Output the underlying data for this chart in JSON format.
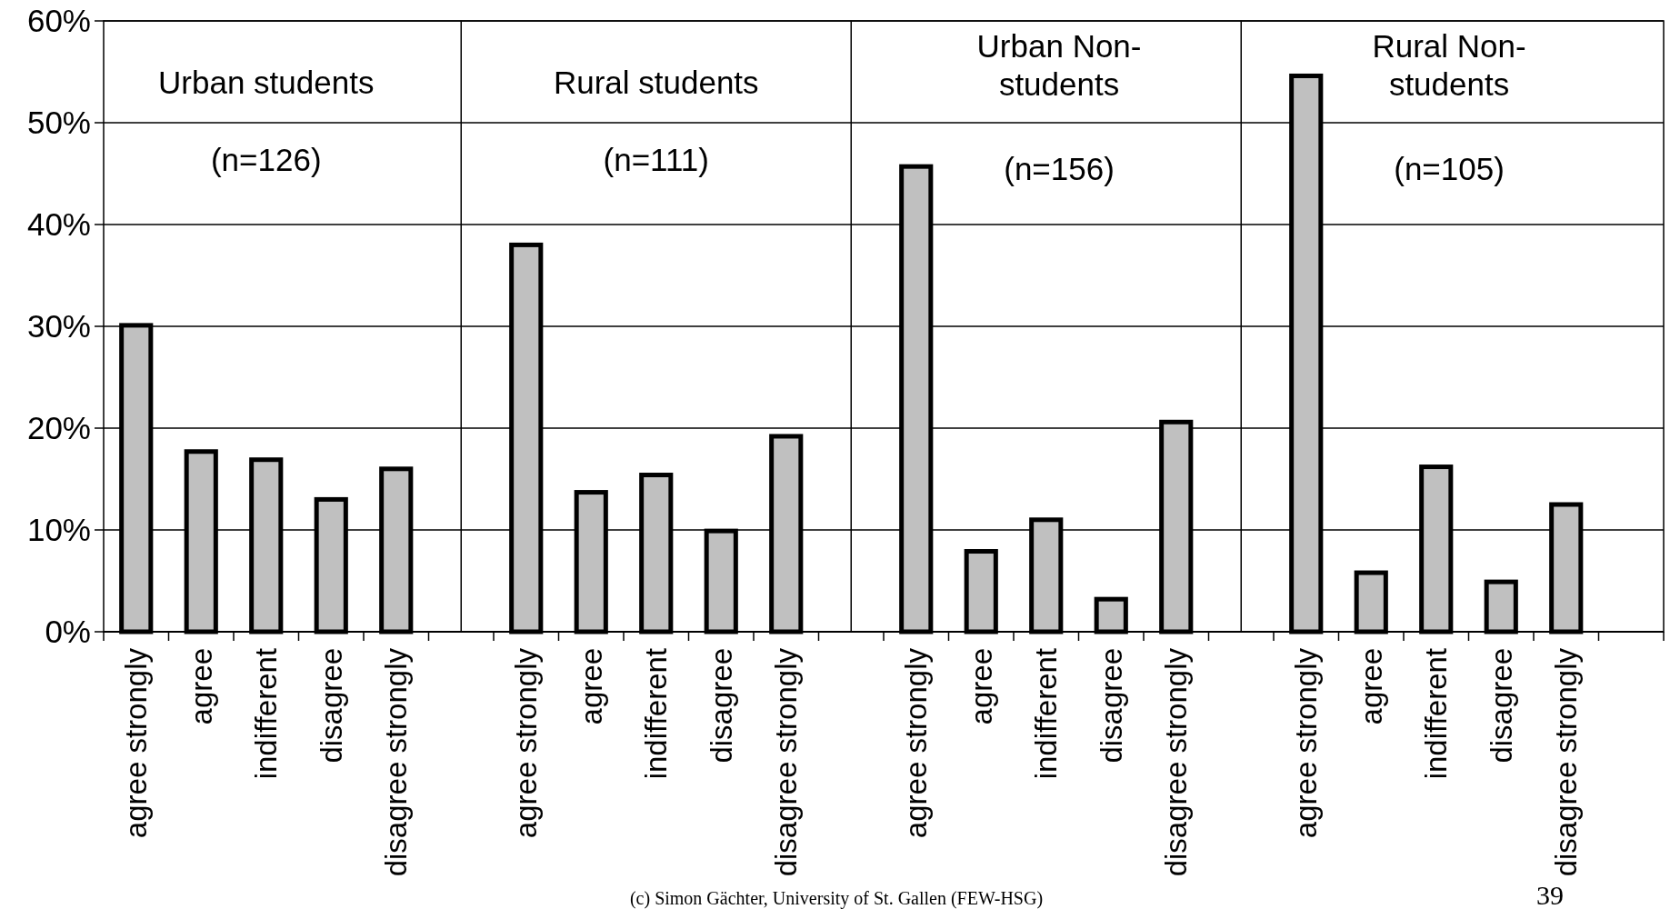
{
  "chart_data": {
    "type": "bar",
    "categories": [
      "agree strongly",
      "agree",
      "indifferent",
      "disagree",
      "disagree strongly",
      null,
      "agree strongly",
      "agree",
      "indifferent",
      "disagree",
      "disagree strongly",
      null,
      "agree strongly",
      "agree",
      "indifferent",
      "disagree",
      "disagree strongly",
      null,
      "agree strongly",
      "agree",
      "indifferent",
      "disagree",
      "disagree strongly",
      null
    ],
    "values": [
      30.1,
      17.7,
      16.9,
      13.0,
      16.0,
      null,
      38.0,
      13.7,
      15.4,
      9.9,
      19.2,
      null,
      45.7,
      7.9,
      11.0,
      3.2,
      20.6,
      null,
      54.6,
      5.8,
      16.2,
      4.9,
      12.5,
      null
    ],
    "color": "#c0c0c0",
    "ylim": [
      0,
      60
    ],
    "yticks": [
      {
        "value": 0,
        "label": "0%"
      },
      {
        "value": 10,
        "label": "10%"
      },
      {
        "value": 20,
        "label": "20%"
      },
      {
        "value": 30,
        "label": "30%"
      },
      {
        "value": 40,
        "label": "40%"
      },
      {
        "value": 50,
        "label": "50%"
      },
      {
        "value": 60,
        "label": "60%"
      }
    ],
    "grid": true,
    "annotations": [
      "Urban students",
      "(n=126)",
      "Rural students",
      "(n=111)",
      "Urban Non-students",
      "(n=156)",
      "Rural Non-students",
      "(n=105)",
      "(c) Simon Gächter, University of St. Gallen (FEW-HSG)",
      "39"
    ]
  }
}
